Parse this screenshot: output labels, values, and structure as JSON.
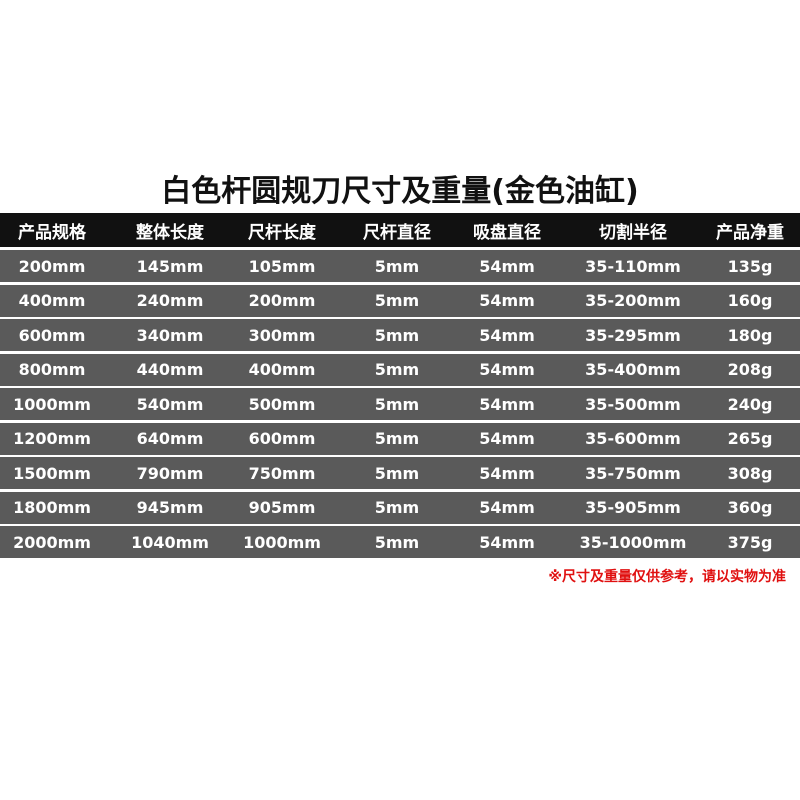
{
  "title": "白色杆圆规刀尺寸及重量(金色油缸)",
  "table": {
    "header": [
      "产品规格",
      "整体长度",
      "尺杆长度",
      "尺杆直径",
      "吸盘直径",
      "切割半径",
      "产品净重"
    ],
    "rows": [
      [
        "200mm",
        "145mm",
        "105mm",
        "5mm",
        "54mm",
        "35-110mm",
        "135g"
      ],
      [
        "400mm",
        "240mm",
        "200mm",
        "5mm",
        "54mm",
        "35-200mm",
        "160g"
      ],
      [
        "600mm",
        "340mm",
        "300mm",
        "5mm",
        "54mm",
        "35-295mm",
        "180g"
      ],
      [
        "800mm",
        "440mm",
        "400mm",
        "5mm",
        "54mm",
        "35-400mm",
        "208g"
      ],
      [
        "1000mm",
        "540mm",
        "500mm",
        "5mm",
        "54mm",
        "35-500mm",
        "240g"
      ],
      [
        "1200mm",
        "640mm",
        "600mm",
        "5mm",
        "54mm",
        "35-600mm",
        "265g"
      ],
      [
        "1500mm",
        "790mm",
        "750mm",
        "5mm",
        "54mm",
        "35-750mm",
        "308g"
      ],
      [
        "1800mm",
        "945mm",
        "905mm",
        "5mm",
        "54mm",
        "35-905mm",
        "360g"
      ],
      [
        "2000mm",
        "1040mm",
        "1000mm",
        "5mm",
        "54mm",
        "35-1000mm",
        "375g"
      ]
    ]
  },
  "note": "※尺寸及重量仅供参考，请以实物为准"
}
